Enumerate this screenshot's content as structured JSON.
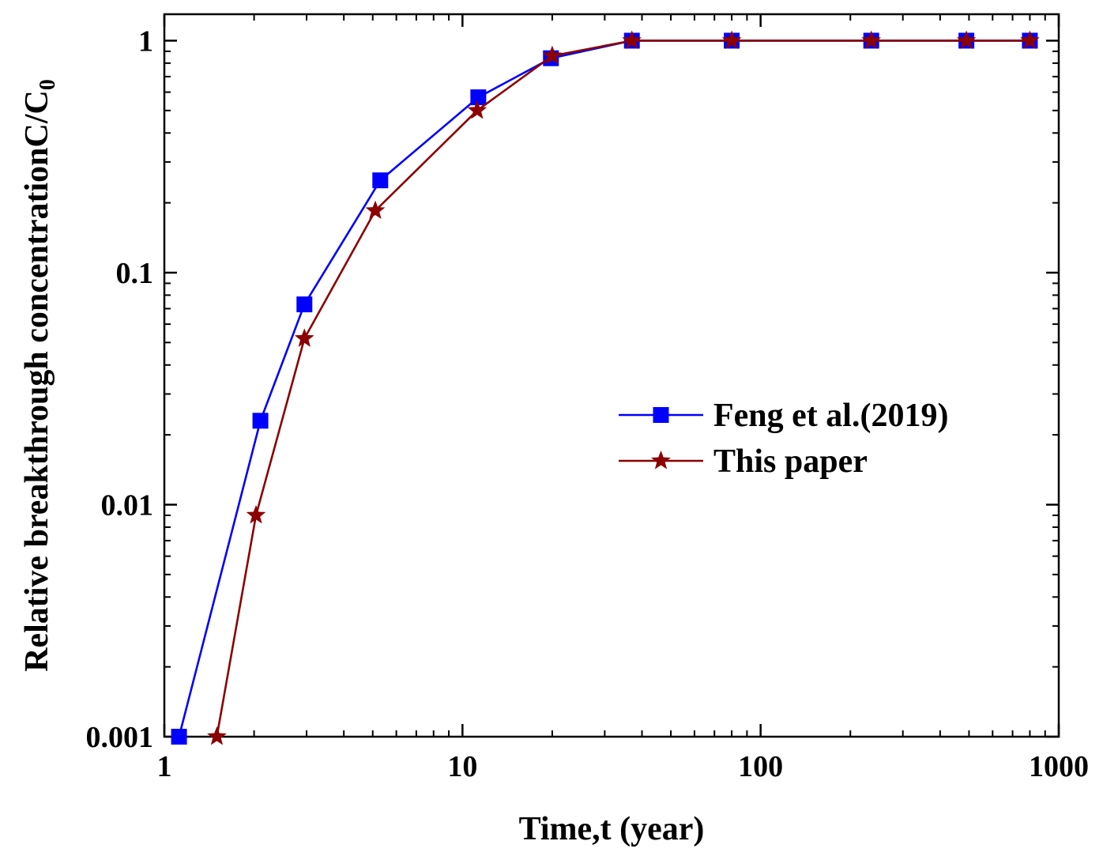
{
  "chart_data": {
    "type": "line",
    "title": "",
    "xlabel": "Time,t (year)",
    "ylabel": "Relative breakthrough concentrationC/C",
    "ylabel_subscript": "0",
    "xscale": "log",
    "yscale": "log",
    "xlim": [
      1,
      1000
    ],
    "ylim": [
      0.001,
      1.3
    ],
    "x_ticks": [
      1,
      10,
      100,
      1000
    ],
    "x_tick_labels": [
      "1",
      "10",
      "100",
      "1000"
    ],
    "y_ticks": [
      0.001,
      0.01,
      0.1,
      1
    ],
    "y_tick_labels": [
      "0.001",
      "0.01",
      "0.1",
      "1"
    ],
    "grid": false,
    "legend_position": "right-middle",
    "series": [
      {
        "name": "Feng et al.(2019)",
        "color": "#0000ff",
        "marker": "square",
        "x": [
          1.12,
          2.1,
          2.95,
          5.3,
          11.3,
          19.8,
          37,
          80,
          235,
          490,
          800
        ],
        "y": [
          0.001,
          0.023,
          0.073,
          0.25,
          0.57,
          0.84,
          1.0,
          1.0,
          1.0,
          1.0,
          1.0
        ]
      },
      {
        "name": "This paper",
        "color": "#8b0000",
        "marker": "star",
        "x": [
          1.5,
          2.03,
          2.95,
          5.1,
          11.2,
          20,
          37,
          80,
          235,
          490,
          800
        ],
        "y": [
          0.001,
          0.009,
          0.052,
          0.185,
          0.5,
          0.86,
          1.0,
          1.0,
          1.0,
          1.0,
          1.0
        ]
      }
    ]
  }
}
